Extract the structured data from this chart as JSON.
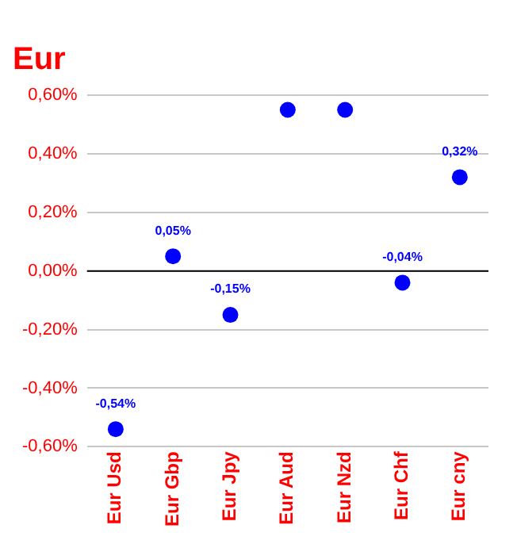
{
  "chart_data": {
    "type": "scatter",
    "title": "Eur",
    "categories": [
      "Eur Usd",
      "Eur Gbp",
      "Eur Jpy",
      "Eur Aud",
      "Eur Nzd",
      "Eur Chf",
      "Eur cny"
    ],
    "series": [
      {
        "color": "#0000ff",
        "values": [
          -0.54,
          0.05,
          -0.15,
          0.55,
          0.55,
          -0.04,
          0.32
        ],
        "value_labels": [
          "-0,54%",
          "0,05%",
          "-0,15%",
          null,
          null,
          "-0,04%",
          "0,32%"
        ]
      }
    ],
    "ylim": [
      -0.6,
      0.6
    ],
    "yticks": [
      {
        "value": -0.6,
        "label": "-0,60%"
      },
      {
        "value": -0.4,
        "label": "-0,40%"
      },
      {
        "value": -0.2,
        "label": "-0,20%"
      },
      {
        "value": 0,
        "label": "0,00%"
      },
      {
        "value": 0.2,
        "label": "0,20%"
      },
      {
        "value": 0.4,
        "label": "0,40%"
      },
      {
        "value": 0.6,
        "label": "0,60%"
      }
    ],
    "ref_lines": [
      {
        "axis": "y",
        "value": 0,
        "color": "#000000"
      }
    ],
    "grid": "y",
    "legend": false,
    "marker": "circle"
  }
}
